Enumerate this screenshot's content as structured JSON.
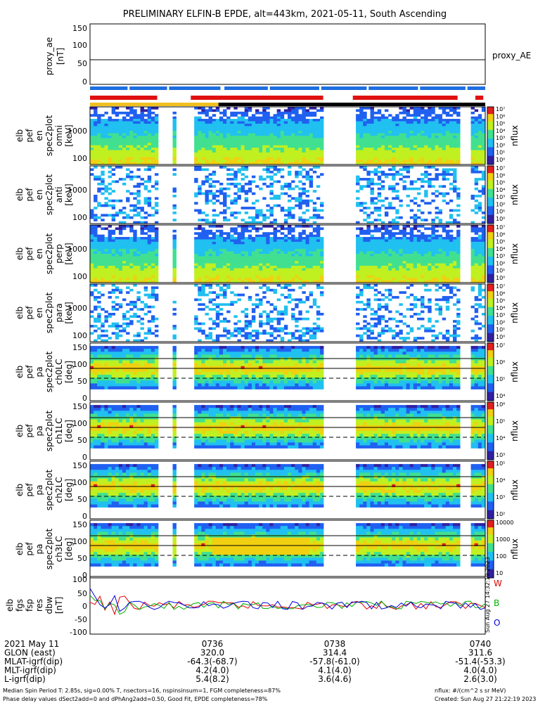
{
  "title": "PRELIMINARY ELFIN-B EPDE, alt=443km, 2021-05-11, South Ascending",
  "colors": {
    "bar_blue": "#1e6fe0",
    "bar_red": "#e01010",
    "bar_yellow": "#f0c020",
    "bar_black": "#000000",
    "res_red": "#e00000",
    "res_green": "#00b000",
    "res_blue": "#0000e0"
  },
  "top_panel": {
    "ylabel": "proxy_ae [nT]",
    "ylabel_lines": [
      "proxy_ae",
      "[nT]"
    ],
    "yticks": [
      "150",
      "100",
      "50",
      "0"
    ],
    "right_label": "proxy_AE"
  },
  "bars": {
    "blue_segments": [
      [
        0.0,
        0.095
      ],
      [
        0.1,
        0.195
      ],
      [
        0.2,
        0.33
      ],
      [
        0.34,
        0.45
      ],
      [
        0.455,
        0.58
      ],
      [
        0.585,
        0.7
      ],
      [
        0.705,
        0.83
      ],
      [
        0.835,
        0.95
      ],
      [
        0.955,
        1.0
      ]
    ],
    "red_segments": [
      [
        0.0,
        0.17
      ],
      [
        0.255,
        0.59
      ],
      [
        0.665,
        0.93
      ],
      [
        0.975,
        0.995
      ]
    ],
    "yellow_segments": [
      [
        0.0,
        0.325
      ]
    ],
    "black_segments": [
      [
        0.325,
        1.0
      ]
    ]
  },
  "spectrogram_panels": [
    {
      "ylabel_lines": [
        "elb",
        "pef",
        "en",
        "spec2plot",
        "omni",
        "[keV]"
      ],
      "yticks": [
        "1000",
        "100"
      ],
      "cbar_ticks": [
        "10⁷",
        "10⁶",
        "10⁵",
        "10⁴",
        "10³",
        "10²",
        "10¹",
        "10⁰"
      ],
      "cbar_label": "nflux"
    },
    {
      "ylabel_lines": [
        "elb",
        "pef",
        "en",
        "spec2plot",
        "anti",
        "[keV]"
      ],
      "yticks": [
        "1000",
        "100"
      ],
      "cbar_ticks": [
        "10⁷",
        "10⁶",
        "10⁵",
        "10⁴",
        "10³",
        "10²",
        "10¹",
        "10⁰"
      ],
      "cbar_label": "nflux"
    },
    {
      "ylabel_lines": [
        "elb",
        "pef",
        "en",
        "spec2plot",
        "perp",
        "[keV]"
      ],
      "yticks": [
        "1000",
        "100"
      ],
      "cbar_ticks": [
        "10⁷",
        "10⁶",
        "10⁵",
        "10⁴",
        "10³",
        "10²",
        "10¹",
        "10⁰"
      ],
      "cbar_label": "nflux"
    },
    {
      "ylabel_lines": [
        "elb",
        "pef",
        "en",
        "spec2plot",
        "para",
        "[keV]"
      ],
      "yticks": [
        "1000",
        "100"
      ],
      "cbar_ticks": [
        "10⁷",
        "10⁶",
        "10⁵",
        "10⁴",
        "10³",
        "10²",
        "10¹",
        "10⁰"
      ],
      "cbar_label": "nflux"
    },
    {
      "ylabel_lines": [
        "elb",
        "pef",
        "pa",
        "spec2plot",
        "ch0LC",
        "[deg]"
      ],
      "yticks": [
        "150",
        "100",
        "50",
        "0"
      ],
      "cbar_ticks": [
        "10⁷",
        "10⁶",
        "10⁵",
        "10⁴"
      ],
      "cbar_label": "nflux"
    },
    {
      "ylabel_lines": [
        "elb",
        "pef",
        "pa",
        "spec2plot",
        "ch1LC",
        "[deg]"
      ],
      "yticks": [
        "150",
        "100",
        "50",
        "0"
      ],
      "cbar_ticks": [
        "10⁶",
        "10⁵",
        "10⁴",
        "10³"
      ],
      "cbar_label": "nflux"
    },
    {
      "ylabel_lines": [
        "elb",
        "pef",
        "pa",
        "spec2plot",
        "ch2LC",
        "[deg]"
      ],
      "yticks": [
        "150",
        "100",
        "50",
        "0"
      ],
      "cbar_ticks": [
        "10⁵",
        "10⁴",
        "10³",
        "10²"
      ],
      "cbar_label": "nflux"
    },
    {
      "ylabel_lines": [
        "elb",
        "pef",
        "pa",
        "spec2plot",
        "ch3LC",
        "[deg]"
      ],
      "yticks": [
        "150",
        "100",
        "50",
        "0"
      ],
      "cbar_ticks": [
        "10000",
        "1000",
        "100",
        "10"
      ],
      "cbar_label": "nflux"
    }
  ],
  "bottom_panel": {
    "ylabel_lines": [
      "elb",
      "fgs",
      "fsp",
      "res",
      "dbw",
      "[nT]"
    ],
    "yticks": [
      "100",
      "50",
      "0",
      "-50",
      "-100"
    ],
    "legend": [
      "W",
      "B",
      "O"
    ],
    "vertical_text": "Sun Aug 27 14:32:19 2023"
  },
  "xaxis": {
    "rows": [
      {
        "label": "2021 May 11",
        "values": [
          "0736",
          "0738",
          "0740"
        ]
      },
      {
        "label": "GLON (east)",
        "values": [
          "320.0",
          "314.4",
          "311.6"
        ]
      },
      {
        "label": "MLAT-igrf(dip)",
        "values": [
          "-64.3(-68.7)",
          "-57.8(-61.0)",
          "-51.4(-53.3)"
        ]
      },
      {
        "label": "MLT-igrf(dip)",
        "values": [
          "4.2(4.0)",
          "4.1(4.0)",
          "4.0(4.0)"
        ]
      },
      {
        "label": "L-igrf(dip)",
        "values": [
          "5.4(8.2)",
          "3.6(4.6)",
          "2.6(3.0)"
        ]
      }
    ]
  },
  "footer": {
    "line1_left": "Median Spin Period T: 2.85s, sig=0.00% T, nsectors=16, nspinsinsum=1, FGM completeness=87%",
    "line2_left": "Phase delay values dSect2add=0 and dPhAng2add=0.50, Good Fit, EPDE completeness=78%",
    "line1_right": "nflux: #/(cm^2 s sr MeV)",
    "line2_right": "Created: Sun Aug 27 21:22:19 2023"
  },
  "chart_data": {
    "type": "heatmap",
    "title": "PRELIMINARY ELFIN-B EPDE, alt=443km, 2021-05-11, South Ascending",
    "x_ticks": [
      "0736",
      "0738",
      "0740"
    ],
    "series": [
      {
        "name": "proxy_ae",
        "type": "line",
        "values": [
          60,
          60
        ]
      },
      {
        "name": "W",
        "type": "line"
      },
      {
        "name": "B",
        "type": "line"
      },
      {
        "name": "O",
        "type": "line"
      }
    ],
    "top_ylim": [
      0,
      150
    ],
    "energy_yticks": [
      100,
      1000
    ],
    "pa_ylim": [
      0,
      160
    ],
    "res_ylim": [
      -100,
      100
    ],
    "colorbar_label": "nflux"
  }
}
